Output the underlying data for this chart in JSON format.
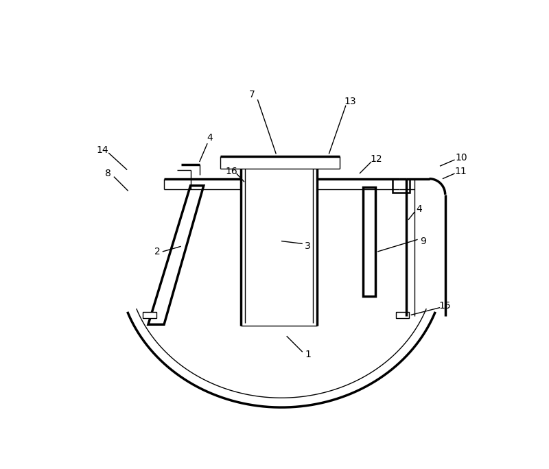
{
  "background_color": "#ffffff",
  "line_color": "#000000",
  "lw_thin": 1.0,
  "lw_med": 1.8,
  "lw_thick": 2.5,
  "fig_width": 8.0,
  "fig_height": 6.84
}
